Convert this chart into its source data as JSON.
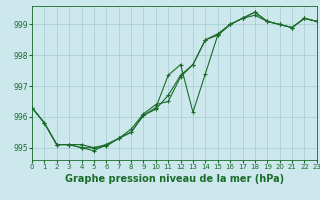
{
  "background_color": "#cce8ed",
  "grid_color": "#aacfd8",
  "line_color": "#1a6b2a",
  "title": "Graphe pression niveau de la mer (hPa)",
  "xlim": [
    0,
    23
  ],
  "ylim": [
    994.6,
    999.6
  ],
  "yticks": [
    995,
    996,
    997,
    998,
    999
  ],
  "xticks": [
    0,
    1,
    2,
    3,
    4,
    5,
    6,
    7,
    8,
    9,
    10,
    11,
    12,
    13,
    14,
    15,
    16,
    17,
    18,
    19,
    20,
    21,
    22,
    23
  ],
  "series1": {
    "x": [
      0,
      1,
      2,
      3,
      4,
      5,
      6,
      7,
      8,
      9,
      10,
      11,
      12,
      13,
      14,
      15,
      16,
      17,
      18,
      19,
      20,
      21,
      22,
      23
    ],
    "y": [
      996.3,
      995.8,
      995.1,
      995.1,
      995.1,
      995.0,
      995.1,
      995.3,
      995.6,
      996.1,
      996.4,
      996.5,
      997.3,
      997.7,
      998.5,
      998.7,
      999.0,
      999.2,
      999.4,
      999.1,
      999.0,
      998.9,
      999.2,
      999.1
    ]
  },
  "series2": {
    "x": [
      0,
      1,
      2,
      3,
      4,
      5,
      6,
      7,
      8,
      9,
      10,
      11,
      12,
      13,
      14,
      15,
      16,
      17,
      18,
      19,
      20,
      21,
      22,
      23
    ],
    "y": [
      996.3,
      995.8,
      995.1,
      995.1,
      995.0,
      994.9,
      995.1,
      995.3,
      995.5,
      996.05,
      996.3,
      997.35,
      997.7,
      996.15,
      997.4,
      998.65,
      999.0,
      999.2,
      999.4,
      999.1,
      999.0,
      998.9,
      999.2,
      999.1
    ]
  },
  "series3": {
    "x": [
      0,
      1,
      2,
      3,
      4,
      5,
      6,
      7,
      8,
      9,
      10,
      11,
      12,
      13,
      14,
      15,
      16,
      17,
      18,
      19,
      20,
      21,
      22,
      23
    ],
    "y": [
      996.3,
      995.8,
      995.1,
      995.1,
      995.0,
      995.0,
      995.05,
      995.3,
      995.5,
      996.05,
      996.25,
      996.7,
      997.35,
      997.7,
      998.5,
      998.65,
      999.0,
      999.2,
      999.3,
      999.1,
      999.0,
      998.9,
      999.2,
      999.1
    ]
  },
  "marker": "+",
  "markersize": 3,
  "linewidth": 0.8,
  "title_fontsize": 7,
  "tick_fontsize": 5.5,
  "xtick_fontsize": 5
}
